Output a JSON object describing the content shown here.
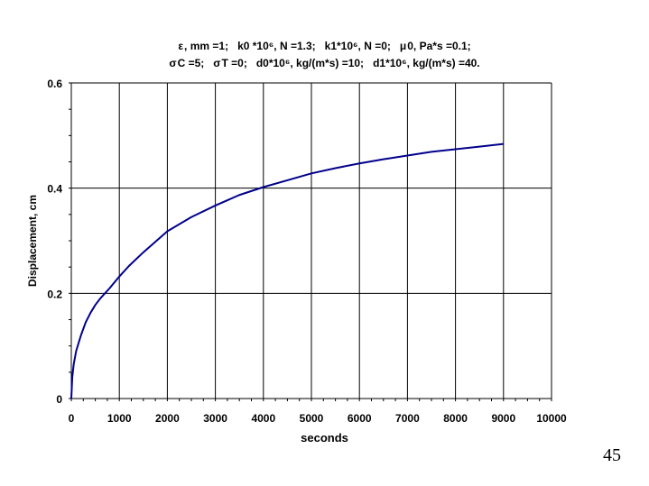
{
  "page_number": "45",
  "chart_data": {
    "type": "line",
    "title_line1": [
      {
        "sym": "ε",
        "text": ", mm =1;"
      },
      {
        "sym": "",
        "text": "k0 *10⁶, N =1.3;"
      },
      {
        "sym": "",
        "text": "k1*10⁶, N =0;"
      },
      {
        "sym": "μ",
        "text": "0, Pa*s =0.1;"
      }
    ],
    "title_line2": [
      {
        "sym": "σ",
        "text": "C =5;"
      },
      {
        "sym": "σ",
        "text": "T =0;"
      },
      {
        "sym": "",
        "text": "d0*10⁶, kg/(m*s) =10;"
      },
      {
        "sym": "",
        "text": "d1*10⁶, kg/(m*s) =40."
      }
    ],
    "xlabel": "seconds",
    "ylabel": "Displacement, cm",
    "xlim": [
      0,
      10000
    ],
    "ylim": [
      0,
      0.6
    ],
    "xticks": [
      0,
      1000,
      2000,
      3000,
      4000,
      5000,
      6000,
      7000,
      8000,
      9000,
      10000
    ],
    "yticks": [
      0,
      0.2,
      0.4,
      0.6
    ],
    "xtick_labels": [
      "0",
      "1000",
      "2000",
      "3000",
      "4000",
      "5000",
      "6000",
      "7000",
      "8000",
      "9000",
      "10000"
    ],
    "ytick_labels": [
      "0",
      "0.2",
      "0.4",
      "0.6"
    ],
    "grid": true,
    "series": [
      {
        "color": "#00008b",
        "x": [
          0,
          20,
          50,
          100,
          200,
          300,
          400,
          500,
          600,
          800,
          1000,
          1200,
          1500,
          2000,
          2500,
          3000,
          3500,
          4000,
          4500,
          5000,
          5500,
          6000,
          6500,
          7000,
          7500,
          8000,
          8500,
          9000
        ],
        "y": [
          0.0,
          0.04,
          0.065,
          0.09,
          0.12,
          0.145,
          0.163,
          0.178,
          0.19,
          0.21,
          0.232,
          0.252,
          0.278,
          0.318,
          0.345,
          0.367,
          0.387,
          0.402,
          0.415,
          0.428,
          0.438,
          0.447,
          0.455,
          0.462,
          0.469,
          0.474,
          0.479,
          0.484
        ]
      }
    ]
  }
}
